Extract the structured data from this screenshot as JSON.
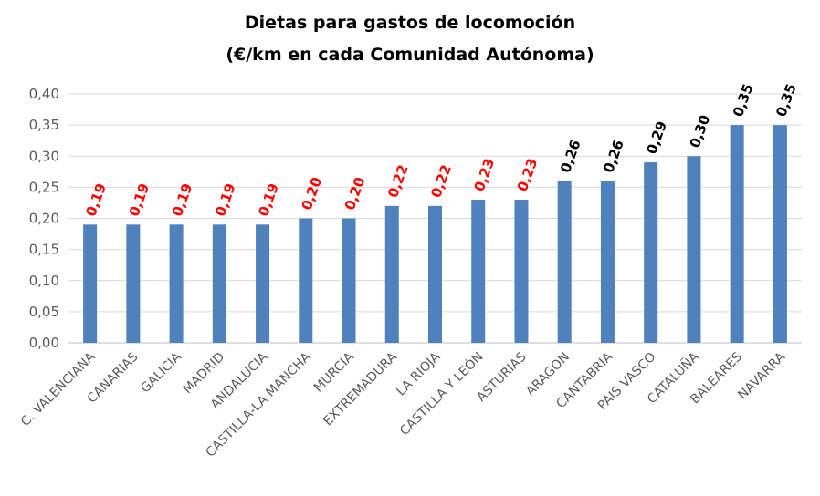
{
  "chart_data": {
    "type": "bar",
    "title": [
      "Dietas para gastos de locomoción",
      "(€/km en cada Comunidad Autónoma)"
    ],
    "categories": [
      "C. VALENCIANA",
      "CANARIAS",
      "GALICIA",
      "MADRID",
      "ANDALUCIA",
      "CASTILLA-LA MANCHA",
      "MURCIA",
      "EXTREMADURA",
      "LA RIOJA",
      "CASTILLA Y LEÓN",
      "ASTURIAS",
      "ARAGÓN",
      "CANTABRIA",
      "PAIS VASCO",
      "CATALUÑA",
      "BALEARES",
      "NAVARRA"
    ],
    "values": [
      0.19,
      0.19,
      0.19,
      0.19,
      0.19,
      0.2,
      0.2,
      0.22,
      0.22,
      0.23,
      0.23,
      0.26,
      0.26,
      0.29,
      0.3,
      0.35,
      0.35
    ],
    "value_labels": [
      "0,19",
      "0,19",
      "0,19",
      "0,19",
      "0,19",
      "0,20",
      "0,20",
      "0,22",
      "0,22",
      "0,23",
      "0,23",
      "0,26",
      "0,26",
      "0,29",
      "0,30",
      "0,35",
      "0,35"
    ],
    "value_label_colors": [
      "#ff0000",
      "#ff0000",
      "#ff0000",
      "#ff0000",
      "#ff0000",
      "#ff0000",
      "#ff0000",
      "#ff0000",
      "#ff0000",
      "#ff0000",
      "#ff0000",
      "#000000",
      "#000000",
      "#000000",
      "#000000",
      "#000000",
      "#000000"
    ],
    "yticks": [
      0,
      0.05,
      0.1,
      0.15,
      0.2,
      0.25,
      0.3,
      0.35,
      0.4
    ],
    "ytick_labels": [
      "0,00",
      "0,05",
      "0,10",
      "0,15",
      "0,20",
      "0,25",
      "0,30",
      "0,35",
      "0,40"
    ],
    "ylim": [
      0,
      0.4
    ],
    "xlabel": "",
    "ylabel": "",
    "grid": true,
    "legend": "none",
    "bar_color": "#4f81bd",
    "grid_color": "#d9d9d9"
  }
}
